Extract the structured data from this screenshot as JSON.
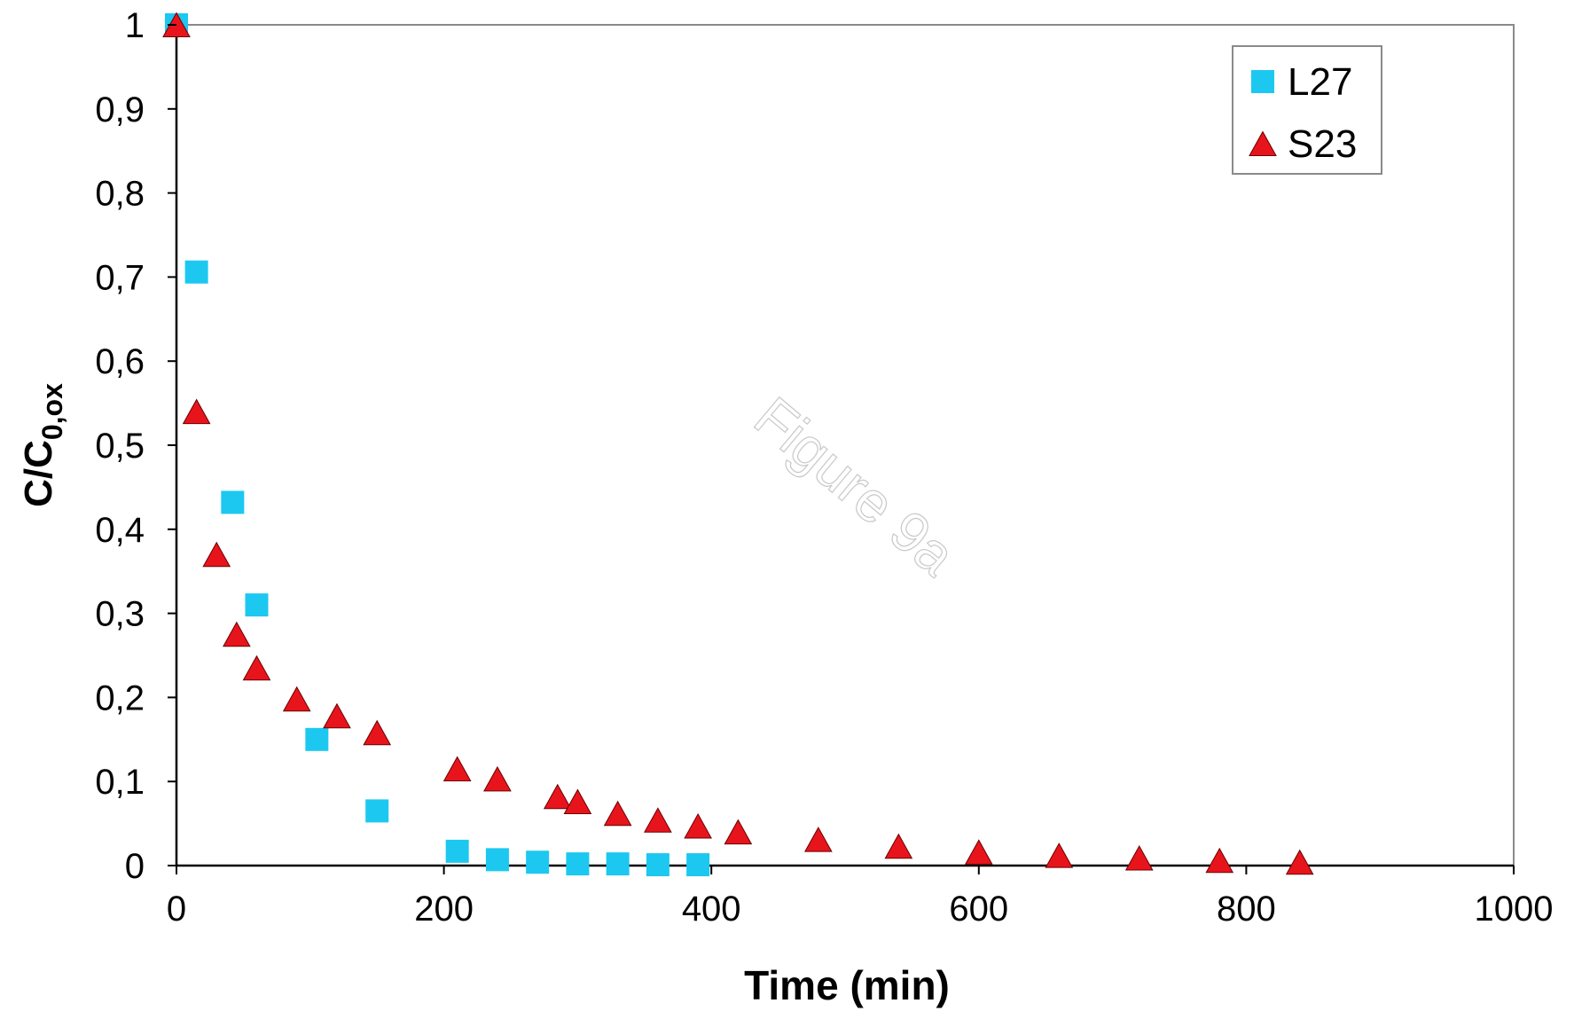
{
  "chart_data": {
    "type": "scatter",
    "title": "",
    "xlabel": "Time (min)",
    "ylabel": {
      "main": "C/C",
      "subscript": "0,ox"
    },
    "xlim": [
      0,
      1000
    ],
    "ylim": [
      0,
      1
    ],
    "x_ticks": [
      0,
      200,
      400,
      600,
      800,
      1000
    ],
    "x_tick_labels": [
      "0",
      "200",
      "400",
      "600",
      "800",
      "1000"
    ],
    "y_ticks": [
      0,
      0.1,
      0.2,
      0.3,
      0.4,
      0.5,
      0.6,
      0.7,
      0.8,
      0.9,
      1
    ],
    "y_tick_labels": [
      "0",
      "0,1",
      "0,2",
      "0,3",
      "0,4",
      "0,5",
      "0,6",
      "0,7",
      "0,8",
      "0,9",
      "1"
    ],
    "grid": false,
    "legend_position": "top-right",
    "watermark": "Figure 9a",
    "series": [
      {
        "name": "L27",
        "marker": "square",
        "color": "#1cc8f0",
        "x": [
          0,
          15,
          42,
          60,
          105,
          150,
          210,
          240,
          270,
          300,
          330,
          360,
          390
        ],
        "y": [
          1.0,
          0.706,
          0.432,
          0.31,
          0.15,
          0.065,
          0.017,
          0.007,
          0.004,
          0.002,
          0.002,
          0.001,
          0.001
        ]
      },
      {
        "name": "S23",
        "marker": "triangle",
        "color": "#e8141c",
        "x": [
          0,
          15,
          30,
          45,
          60,
          90,
          120,
          150,
          210,
          240,
          285,
          300,
          330,
          360,
          390,
          420,
          480,
          540,
          600,
          660,
          720,
          780,
          840
        ],
        "y": [
          1.0,
          0.54,
          0.37,
          0.275,
          0.235,
          0.198,
          0.178,
          0.158,
          0.115,
          0.103,
          0.082,
          0.076,
          0.062,
          0.054,
          0.047,
          0.04,
          0.031,
          0.023,
          0.016,
          0.012,
          0.009,
          0.006,
          0.004
        ]
      }
    ]
  }
}
